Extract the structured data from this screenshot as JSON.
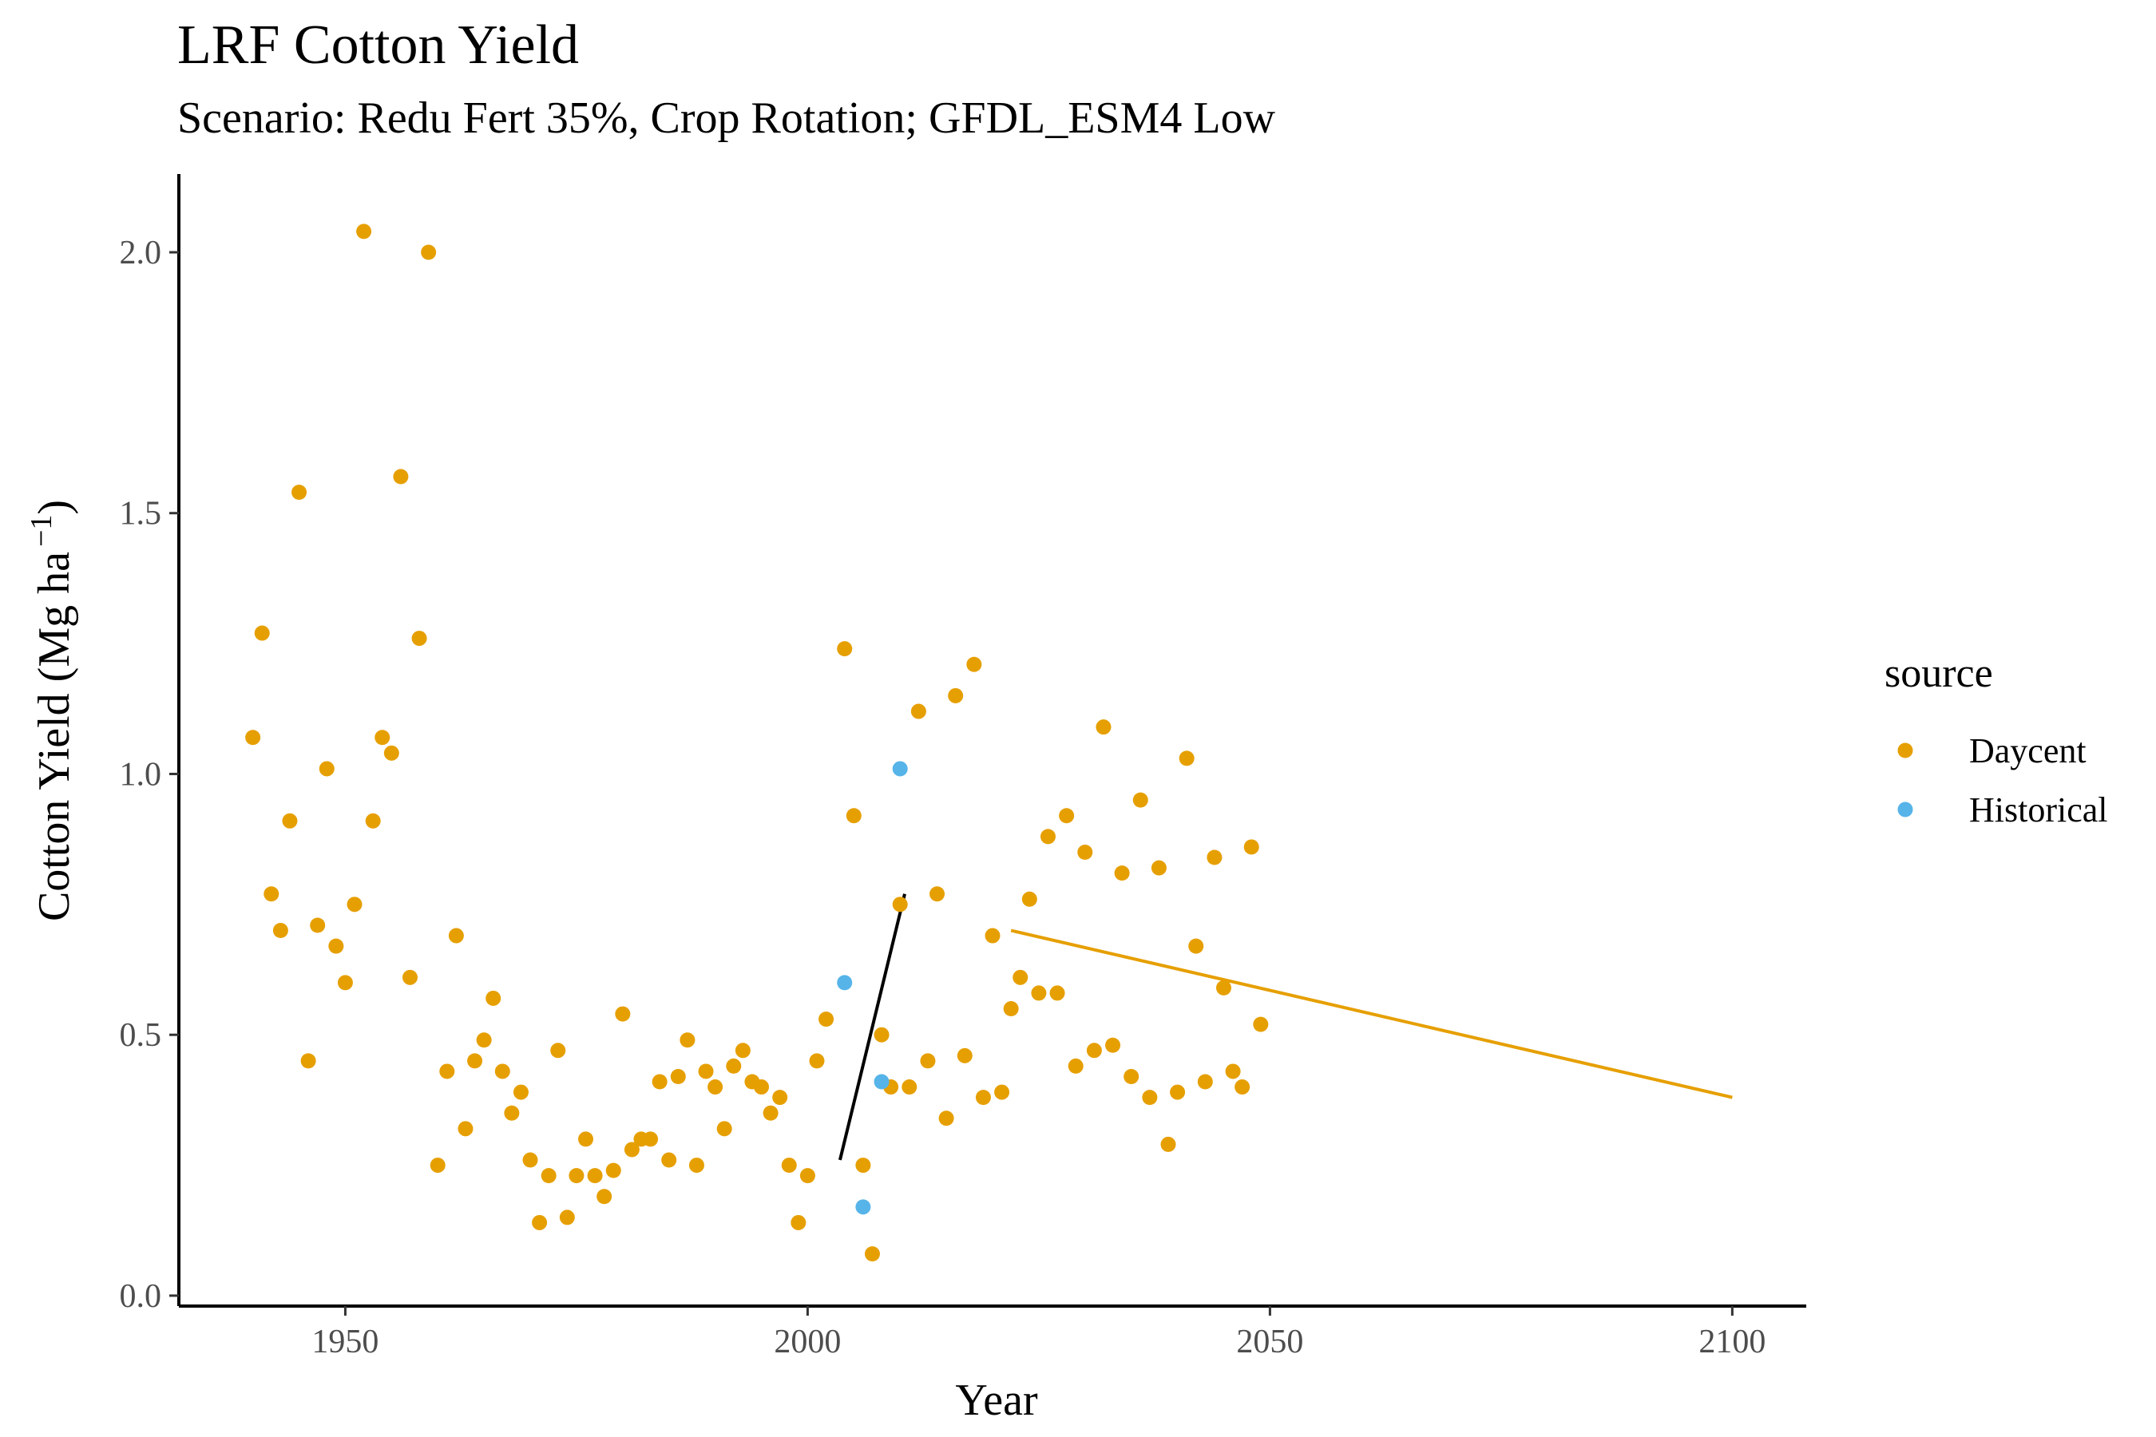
{
  "chart_data": {
    "type": "scatter",
    "title": "LRF Cotton Yield",
    "subtitle": "Scenario: Redu Fert 35%, Crop Rotation; GFDL_ESM4 Low",
    "xlabel": "Year",
    "ylabel": "Cotton Yield (Mg ha",
    "ylabel_sup": "−1",
    "ylabel_close": ")",
    "xlim": [
      1932,
      2108
    ],
    "ylim": [
      -0.02,
      2.15
    ],
    "xticks": [
      1950,
      2000,
      2050,
      2100
    ],
    "xtick_labels": [
      "1950",
      "2000",
      "2050",
      "2100"
    ],
    "yticks": [
      0.0,
      0.5,
      1.0,
      1.5,
      2.0
    ],
    "ytick_labels": [
      "0.0",
      "0.5",
      "1.0",
      "1.5",
      "2.0"
    ],
    "grid": false,
    "legend": {
      "title": "source",
      "position": "right"
    },
    "series": [
      {
        "name": "Daycent",
        "color": "#E69F00",
        "points": [
          [
            1940,
            1.07
          ],
          [
            1941,
            1.27
          ],
          [
            1942,
            0.77
          ],
          [
            1943,
            0.7
          ],
          [
            1944,
            0.91
          ],
          [
            1945,
            1.54
          ],
          [
            1946,
            0.45
          ],
          [
            1947,
            0.71
          ],
          [
            1948,
            1.01
          ],
          [
            1949,
            0.67
          ],
          [
            1950,
            0.6
          ],
          [
            1951,
            0.75
          ],
          [
            1952,
            2.04
          ],
          [
            1953,
            0.91
          ],
          [
            1954,
            1.07
          ],
          [
            1955,
            1.04
          ],
          [
            1956,
            1.57
          ],
          [
            1957,
            0.61
          ],
          [
            1958,
            1.26
          ],
          [
            1959,
            2.0
          ],
          [
            1960,
            0.25
          ],
          [
            1961,
            0.43
          ],
          [
            1962,
            0.69
          ],
          [
            1963,
            0.32
          ],
          [
            1964,
            0.45
          ],
          [
            1965,
            0.49
          ],
          [
            1966,
            0.57
          ],
          [
            1967,
            0.43
          ],
          [
            1968,
            0.35
          ],
          [
            1969,
            0.39
          ],
          [
            1970,
            0.26
          ],
          [
            1971,
            0.14
          ],
          [
            1972,
            0.23
          ],
          [
            1973,
            0.47
          ],
          [
            1974,
            0.15
          ],
          [
            1975,
            0.23
          ],
          [
            1976,
            0.3
          ],
          [
            1977,
            0.23
          ],
          [
            1978,
            0.19
          ],
          [
            1979,
            0.24
          ],
          [
            1980,
            0.54
          ],
          [
            1981,
            0.28
          ],
          [
            1982,
            0.3
          ],
          [
            1983,
            0.3
          ],
          [
            1984,
            0.41
          ],
          [
            1985,
            0.26
          ],
          [
            1986,
            0.42
          ],
          [
            1987,
            0.49
          ],
          [
            1988,
            0.25
          ],
          [
            1989,
            0.43
          ],
          [
            1990,
            0.4
          ],
          [
            1991,
            0.32
          ],
          [
            1992,
            0.44
          ],
          [
            1993,
            0.47
          ],
          [
            1994,
            0.41
          ],
          [
            1995,
            0.4
          ],
          [
            1996,
            0.35
          ],
          [
            1997,
            0.38
          ],
          [
            1998,
            0.25
          ],
          [
            1999,
            0.14
          ],
          [
            2000,
            0.23
          ],
          [
            2001,
            0.45
          ],
          [
            2002,
            0.53
          ],
          [
            2004,
            1.24
          ],
          [
            2005,
            0.92
          ],
          [
            2006,
            0.25
          ],
          [
            2007,
            0.08
          ],
          [
            2008,
            0.5
          ],
          [
            2009,
            0.4
          ],
          [
            2010,
            0.75
          ],
          [
            2011,
            0.4
          ],
          [
            2012,
            1.12
          ],
          [
            2013,
            0.45
          ],
          [
            2014,
            0.77
          ],
          [
            2015,
            0.34
          ],
          [
            2016,
            1.15
          ],
          [
            2017,
            0.46
          ],
          [
            2018,
            1.21
          ],
          [
            2019,
            0.38
          ],
          [
            2020,
            0.69
          ],
          [
            2021,
            0.39
          ],
          [
            2022,
            0.55
          ],
          [
            2023,
            0.61
          ],
          [
            2024,
            0.76
          ],
          [
            2025,
            0.58
          ],
          [
            2026,
            0.88
          ],
          [
            2027,
            0.58
          ],
          [
            2028,
            0.92
          ],
          [
            2029,
            0.44
          ],
          [
            2030,
            0.85
          ],
          [
            2031,
            0.47
          ],
          [
            2032,
            1.09
          ],
          [
            2033,
            0.48
          ],
          [
            2034,
            0.81
          ],
          [
            2035,
            0.42
          ],
          [
            2036,
            0.95
          ],
          [
            2037,
            0.38
          ],
          [
            2038,
            0.82
          ],
          [
            2039,
            0.29
          ],
          [
            2040,
            0.39
          ],
          [
            2041,
            1.03
          ],
          [
            2042,
            0.67
          ],
          [
            2043,
            0.41
          ],
          [
            2044,
            0.84
          ],
          [
            2045,
            0.59
          ],
          [
            2046,
            0.43
          ],
          [
            2047,
            0.4
          ],
          [
            2048,
            0.86
          ],
          [
            2049,
            0.52
          ]
        ]
      },
      {
        "name": "Historical",
        "color": "#56B4E9",
        "points": [
          [
            2004,
            0.6
          ],
          [
            2006,
            0.17
          ],
          [
            2008,
            0.41
          ],
          [
            2010,
            1.01
          ]
        ]
      }
    ],
    "trend_lines": [
      {
        "color": "#000000",
        "points": [
          [
            2003.5,
            0.26
          ],
          [
            2010.5,
            0.77
          ]
        ]
      },
      {
        "color": "#E69F00",
        "points": [
          [
            2022,
            0.7
          ],
          [
            2100,
            0.38
          ]
        ]
      }
    ]
  }
}
